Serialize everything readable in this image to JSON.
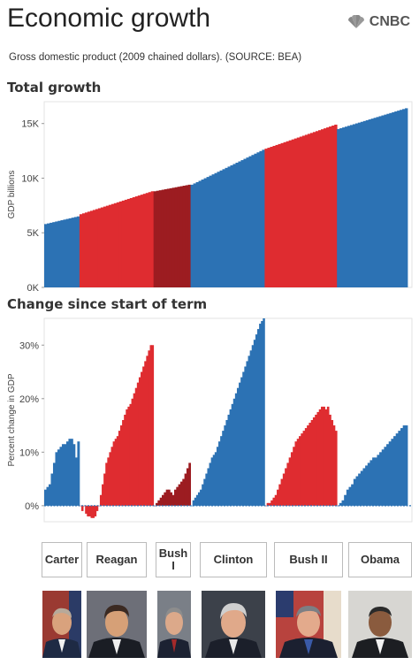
{
  "header": {
    "title": "Economic growth",
    "logo_text": "CNBC",
    "subtitle": "Gross domestic product (2009 chained dollars). (SOURCE: BEA)"
  },
  "colors": {
    "democrat": "#2c72b4",
    "republican": "#df2c30",
    "republican_dark": "#9c1c21"
  },
  "sections": {
    "total_title": "Total growth",
    "change_title": "Change since start of term"
  },
  "presidents": [
    {
      "label": "Carter",
      "party": "democrat"
    },
    {
      "label": "Reagan",
      "party": "republican"
    },
    {
      "label": "Bush I",
      "party": "republican_dark"
    },
    {
      "label": "Clinton",
      "party": "democrat"
    },
    {
      "label": "Bush II",
      "party": "republican"
    },
    {
      "label": "Obama",
      "party": "democrat"
    }
  ],
  "chart_data": [
    {
      "type": "bar",
      "title": "Total growth",
      "ylabel": "GDP billions",
      "ylim": [
        0,
        17000
      ],
      "yticks": [
        0,
        5000,
        10000,
        15000
      ],
      "ytick_labels": [
        "0K",
        "5K",
        "10K",
        "15K"
      ],
      "grid": false,
      "series": [
        {
          "name": "Carter",
          "start": 5800,
          "end": 6500
        },
        {
          "name": "Reagan",
          "start": 6700,
          "end": 8800
        },
        {
          "name": "Bush I",
          "start": 8800,
          "end": 9400
        },
        {
          "name": "Clinton",
          "start": 9400,
          "end": 12600
        },
        {
          "name": "Bush II",
          "start": 12700,
          "end": 14900
        },
        {
          "name": "Obama",
          "start": 14500,
          "end": 16400
        }
      ]
    },
    {
      "type": "bar",
      "title": "Change since start of term",
      "ylabel": "Percent change in GDP",
      "ylim": [
        -3,
        35
      ],
      "yticks": [
        0,
        10,
        20,
        30
      ],
      "ytick_labels": [
        "0%",
        "10%",
        "20%",
        "30%"
      ],
      "grid": false,
      "series": [
        {
          "name": "Carter",
          "values": [
            3,
            3.5,
            4,
            6,
            8,
            10,
            10.5,
            11,
            11.5,
            11.5,
            12,
            12.5,
            12.5,
            11.5,
            9,
            12
          ]
        },
        {
          "name": "Reagan",
          "values": [
            0,
            -1,
            0,
            -1.5,
            -2,
            -2,
            -2.3,
            -2.3,
            -2,
            -1,
            0,
            2,
            4,
            6,
            8,
            9,
            10,
            11,
            12,
            12.5,
            13,
            14,
            15,
            16,
            17,
            18,
            18.5,
            19,
            20,
            21,
            22,
            23,
            24,
            25,
            26,
            27,
            28,
            29,
            30,
            30
          ]
        },
        {
          "name": "Bush I",
          "values": [
            0,
            0.5,
            1,
            1.5,
            2,
            2.5,
            3,
            3,
            2.5,
            2,
            3,
            3.5,
            4,
            4.5,
            5,
            6,
            7,
            8
          ]
        },
        {
          "name": "Clinton",
          "values": [
            0,
            1,
            1.5,
            2,
            2.5,
            3,
            4,
            5,
            6,
            7,
            8,
            9,
            9.5,
            10,
            11,
            12,
            13,
            14,
            15,
            16,
            17,
            18,
            19,
            20,
            21,
            22,
            23,
            24,
            25,
            26,
            27,
            28,
            29,
            30,
            31,
            32,
            33,
            34,
            34.5,
            35
          ]
        },
        {
          "name": "Bush II",
          "values": [
            0,
            0.5,
            0.5,
            1,
            1.5,
            2,
            3,
            4,
            5,
            6,
            7,
            8,
            9,
            10,
            11,
            12,
            12.5,
            13,
            13.5,
            14,
            14.5,
            15,
            15.5,
            16,
            16.5,
            17,
            17.5,
            18,
            18.5,
            18.5,
            18,
            18.5,
            17,
            16,
            15,
            14
          ]
        },
        {
          "name": "Obama",
          "values": [
            0,
            0.5,
            1,
            2,
            3,
            3.5,
            4,
            5,
            5.5,
            6,
            6.5,
            7,
            7.5,
            8,
            8.5,
            9,
            9,
            9.5,
            10,
            10.5,
            11,
            11.5,
            12,
            12.5,
            13,
            13.5,
            14,
            14.5,
            15,
            15
          ]
        }
      ]
    }
  ]
}
